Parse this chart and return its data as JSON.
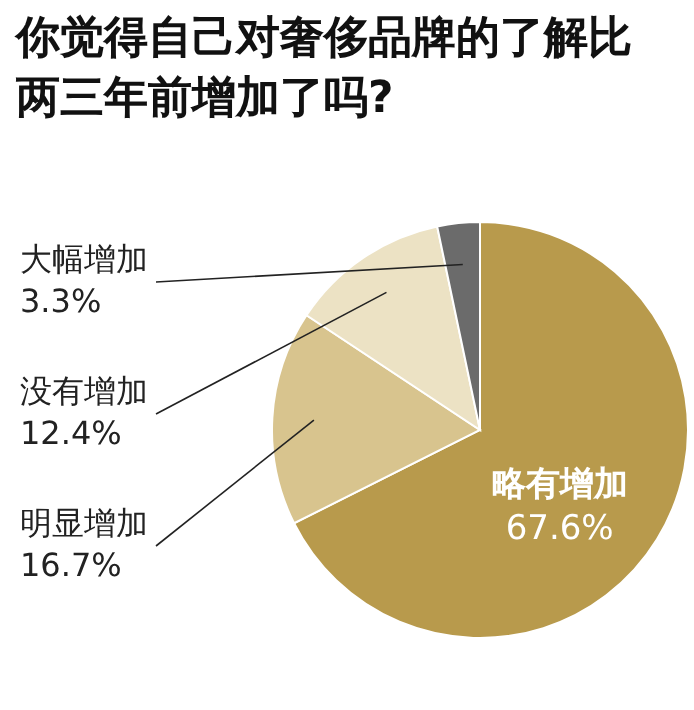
{
  "chart_data": {
    "type": "pie",
    "title": "你觉得自己对奢侈品牌的了解比两三年前增加了吗?",
    "categories": [
      "略有增加",
      "明显增加",
      "没有增加",
      "大幅增加"
    ],
    "values": [
      67.6,
      16.7,
      12.4,
      3.3
    ],
    "colors": [
      "#b89a4c",
      "#d8c48e",
      "#ece2c4",
      "#6b6b6b"
    ],
    "value_labels": [
      "67.6%",
      "16.7%",
      "12.4%",
      "3.3%"
    ]
  }
}
